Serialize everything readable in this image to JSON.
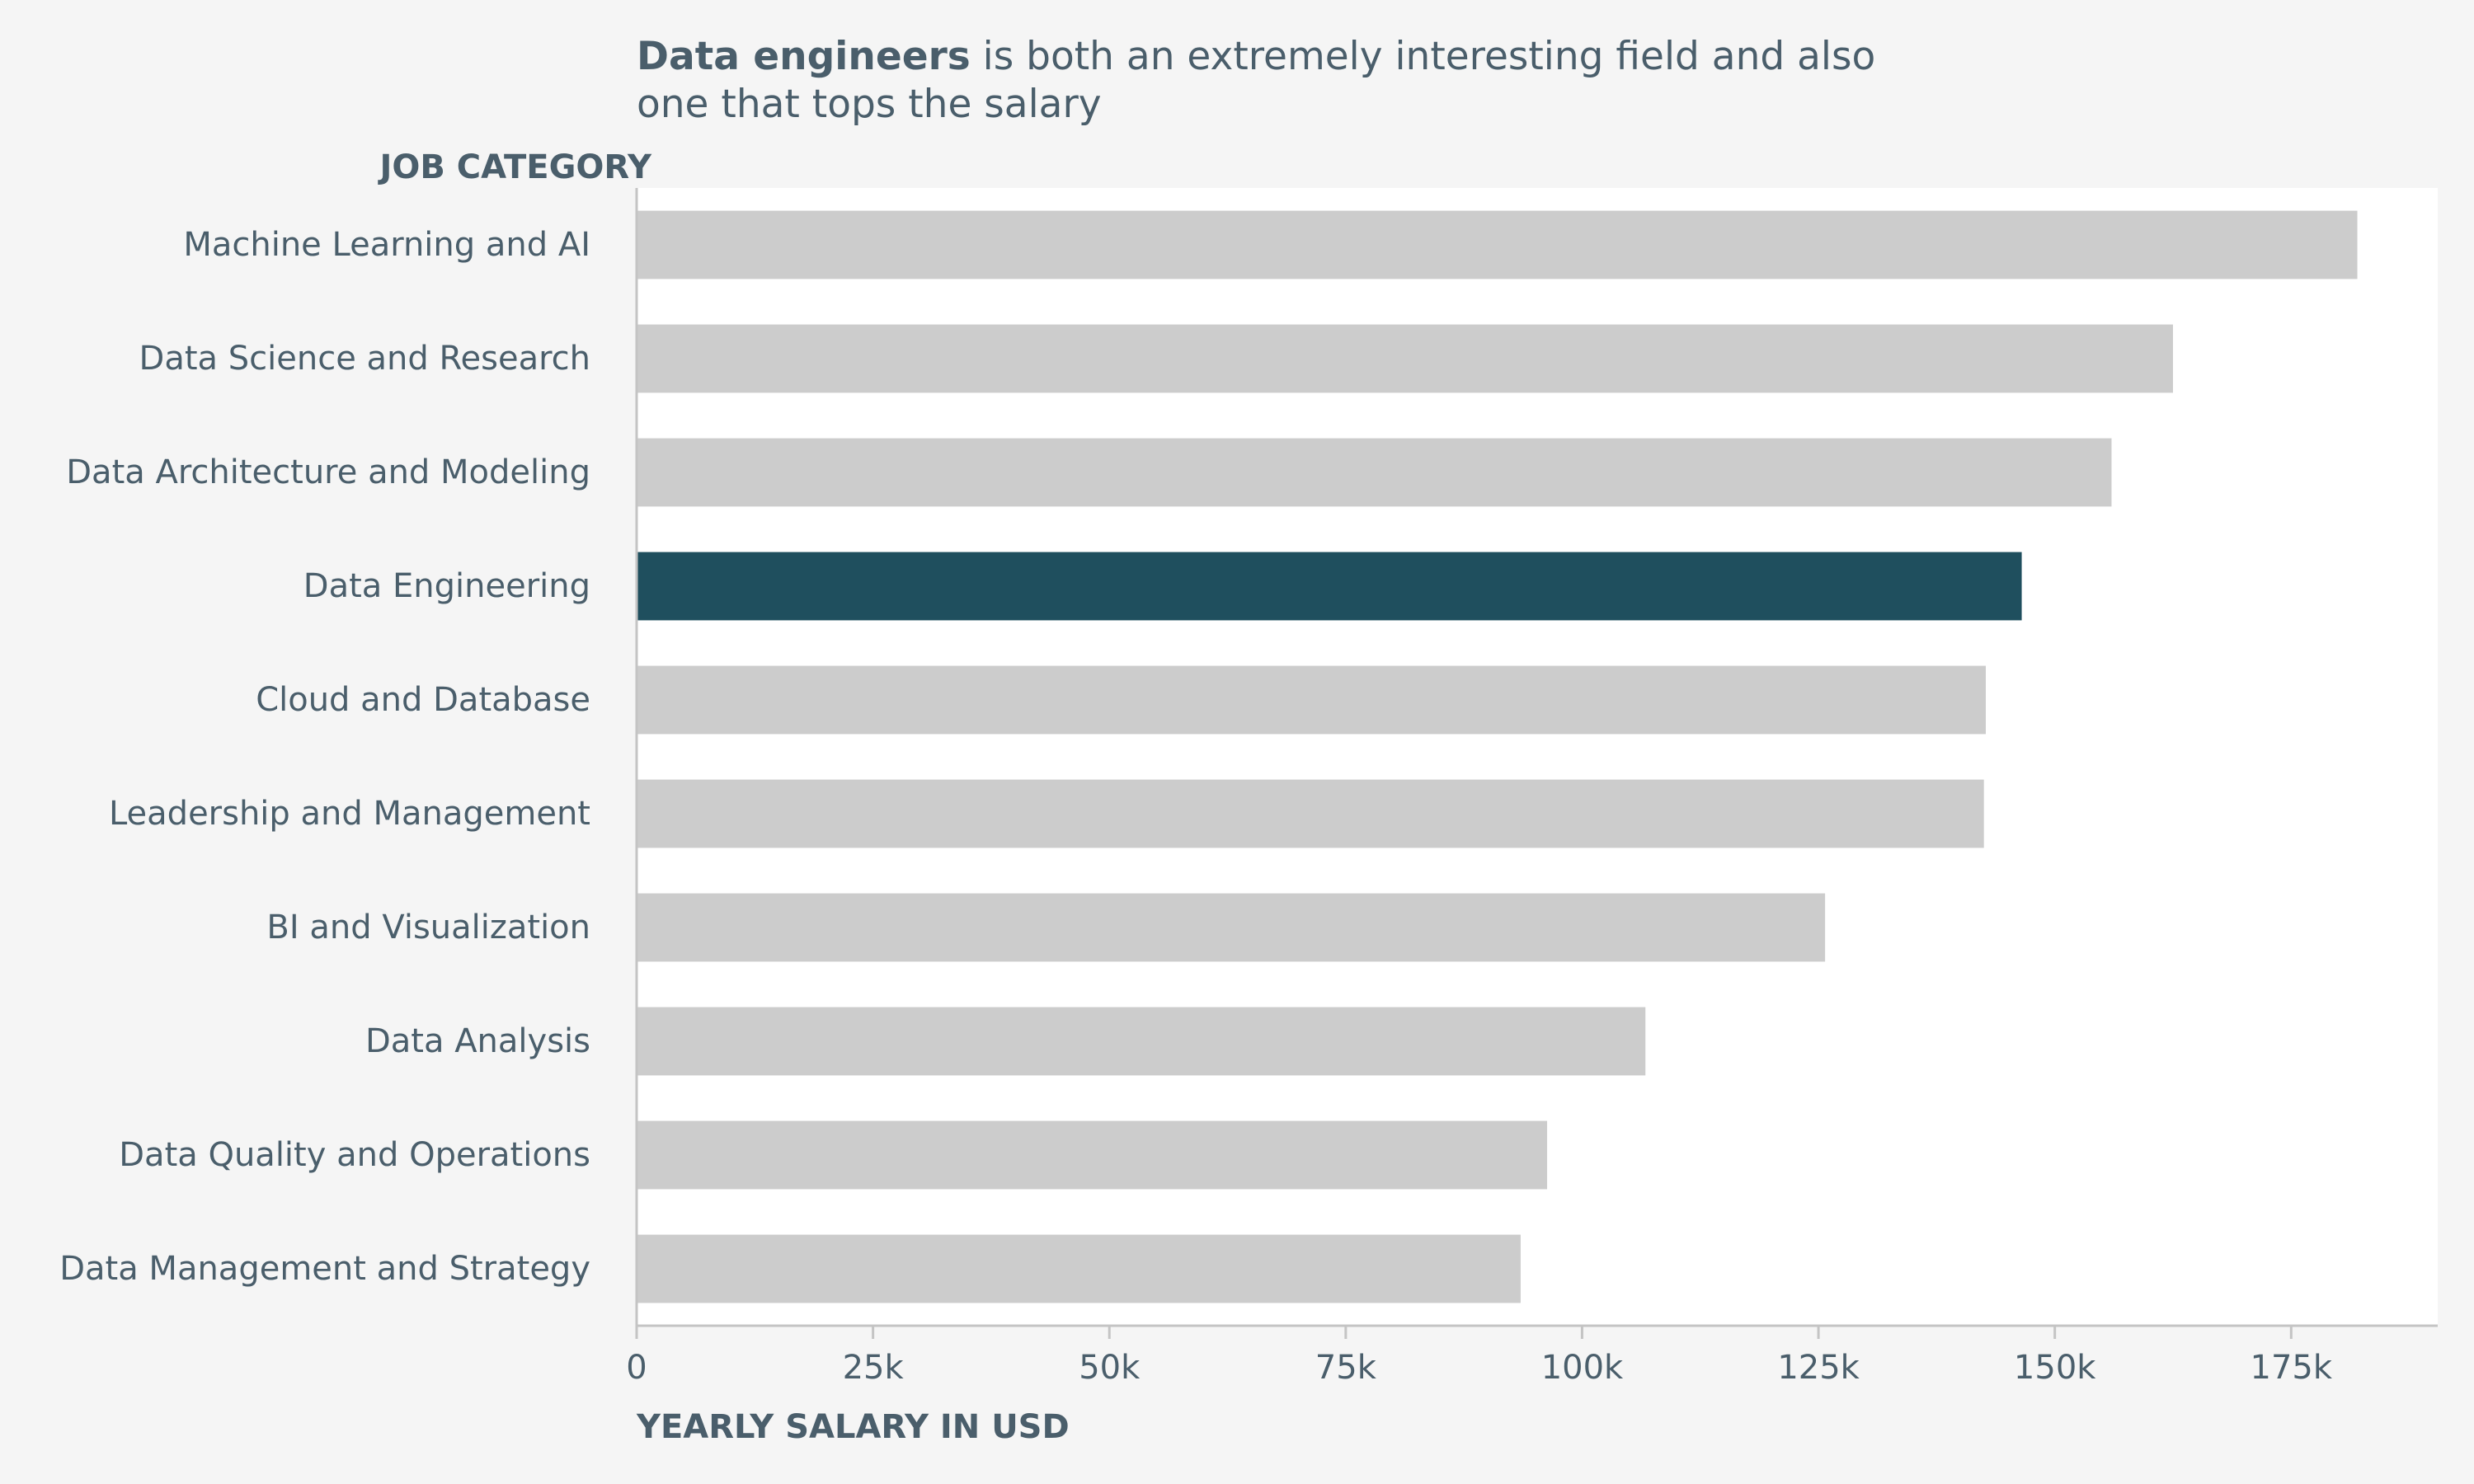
{
  "colors": {
    "background": "#f5f5f5",
    "plot_background": "#ffffff",
    "bar_default": "#cccccc",
    "bar_highlight": "#1f4f5e",
    "text": "#4a5e6b",
    "axis": "#c4c4c4"
  },
  "chart_data": {
    "type": "bar",
    "orientation": "horizontal",
    "title": {
      "bold": "Data engineers",
      "rest_line1": " is both an extremely interesting field and also",
      "line2": "one that tops the salary"
    },
    "ylabel": "JOB CATEGORY",
    "xlabel": "YEARLY SALARY IN USD",
    "categories": [
      "Machine Learning and AI",
      "Data Science and Research",
      "Data Architecture and Modeling",
      "Data Engineering",
      "Cloud and Database",
      "Leadership and Management",
      "BI and Visualization",
      "Data Analysis",
      "Data Quality and Operations",
      "Data Management and Strategy"
    ],
    "values": [
      182000,
      162500,
      156000,
      146500,
      142700,
      142500,
      125700,
      106700,
      96300,
      93500
    ],
    "highlight": "Data Engineering",
    "xlim": [
      0,
      190500
    ],
    "xticks": [
      0,
      25000,
      50000,
      75000,
      100000,
      125000,
      150000,
      175000
    ],
    "xtick_labels": [
      "0",
      "25k",
      "50k",
      "75k",
      "100k",
      "125k",
      "150k",
      "175k"
    ],
    "grid": false,
    "legend": "none"
  }
}
